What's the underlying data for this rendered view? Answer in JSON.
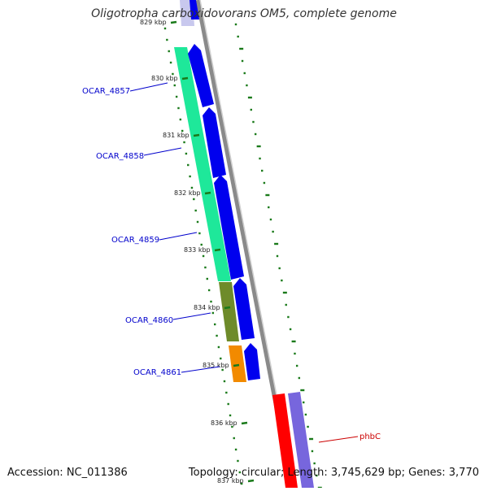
{
  "title": "Oligotropha carboxidovorans OM5, complete genome",
  "footer": {
    "accession": "Accession: NC_011386",
    "summary": "Topology: circular; Length: 3,745,629 bp; Genes: 3,770"
  },
  "colors": {
    "backbone": "#8a8a8a",
    "dots": "#1a7a1a",
    "forward_cds": "#0000ee",
    "label_blue": "#0000cc",
    "label_red": "#cc0000"
  },
  "ticks": [
    {
      "label": "829 kbp"
    },
    {
      "label": "830 kbp"
    },
    {
      "label": "831 kbp"
    },
    {
      "label": "832 kbp"
    },
    {
      "label": "833 kbp"
    },
    {
      "label": "834 kbp"
    },
    {
      "label": "835 kbp"
    },
    {
      "label": "836 kbp"
    },
    {
      "label": "837 kbp"
    }
  ],
  "gene_labels": [
    {
      "text": "OCAR_4857"
    },
    {
      "text": "OCAR_4858"
    },
    {
      "text": "OCAR_4859"
    },
    {
      "text": "OCAR_4860"
    },
    {
      "text": "OCAR_4861"
    },
    {
      "text": "phbC"
    }
  ]
}
